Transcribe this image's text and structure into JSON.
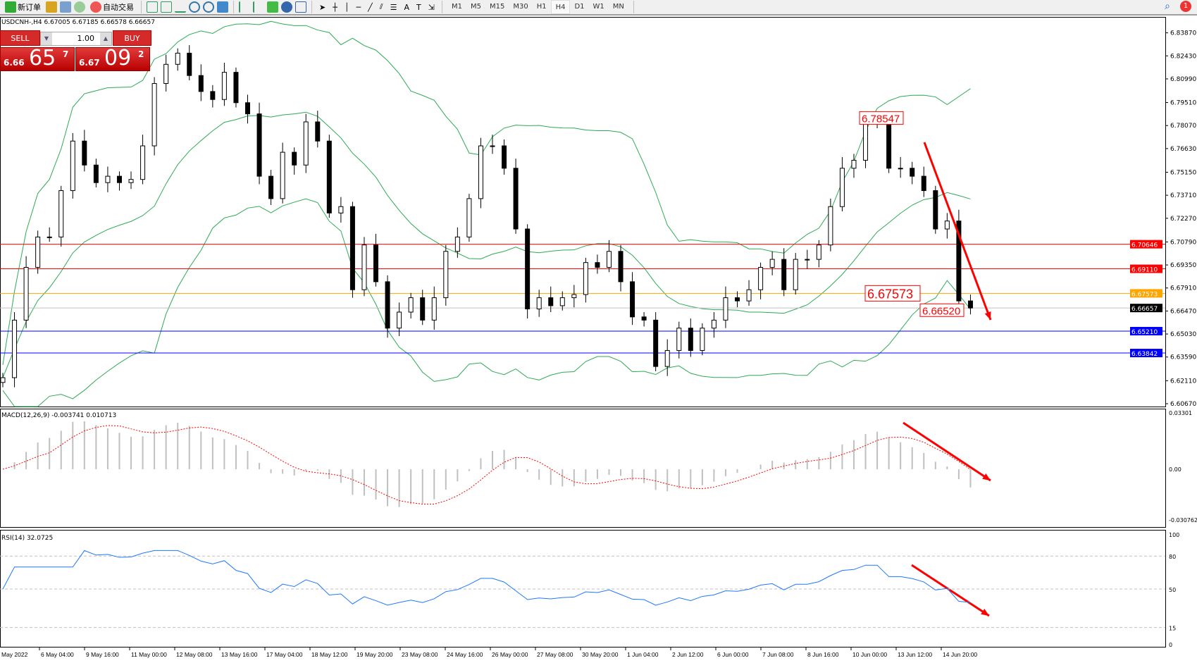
{
  "toolbar": {
    "new_order": "新订单",
    "auto_trading": "自动交易",
    "timeframes": [
      "M1",
      "M5",
      "M15",
      "M30",
      "H1",
      "H4",
      "D1",
      "W1",
      "MN"
    ],
    "active_timeframe": "H4",
    "notification_count": "1"
  },
  "symbol_info": "USDCNH-,H4  6.67005 6.67185 6.66578 6.66657",
  "trade_panel": {
    "sell_label": "SELL",
    "buy_label": "BUY",
    "lot": "1.00",
    "sell": {
      "prefix": "6.66",
      "large": "65",
      "sup": "7"
    },
    "buy": {
      "prefix": "6.67",
      "large": "09",
      "sup": "2"
    }
  },
  "price_axis": {
    "ticks": [
      "6.83870",
      "6.82430",
      "6.80990",
      "6.79510",
      "6.78070",
      "6.76630",
      "6.75150",
      "6.73710",
      "6.72270",
      "6.70790",
      "6.69350",
      "6.67910",
      "6.66470",
      "6.65030",
      "6.63590",
      "6.62110",
      "6.60670"
    ],
    "range": [
      6.6067,
      6.8387
    ]
  },
  "levels": [
    {
      "price": "6.70646",
      "color": "#ff0000"
    },
    {
      "price": "6.69110",
      "color": "#ff0000"
    },
    {
      "price": "6.67573",
      "color": "#ffa500"
    },
    {
      "price": "6.66657",
      "color": "#000000",
      "line": "#c0c0c0"
    },
    {
      "price": "6.65210",
      "color": "#0000ff"
    },
    {
      "price": "6.63842",
      "color": "#0000ff"
    }
  ],
  "annotations": [
    {
      "text": "6.78547",
      "price": 6.78547
    },
    {
      "text": "6.67573",
      "price": 6.67573
    },
    {
      "text": "6.66520",
      "price": 6.6652
    }
  ],
  "macd": {
    "label": "MACD(12,26,9) -0.003741 0.010713",
    "ticks": [
      "0.03301",
      "0.00",
      "-0.030762"
    ]
  },
  "rsi": {
    "label": "RSI(14) 32.0725",
    "ticks": [
      "100",
      "80",
      "50",
      "15",
      "0"
    ]
  },
  "time_axis": [
    "May 2022",
    "6 May 04:00",
    "9 May 16:00",
    "11 May 00:00",
    "12 May 08:00",
    "13 May 16:00",
    "17 May 04:00",
    "18 May 12:00",
    "19 May 20:00",
    "23 May 08:00",
    "24 May 16:00",
    "26 May 00:00",
    "27 May 08:00",
    "30 May 20:00",
    "1 Jun 04:00",
    "2 Jun 12:00",
    "6 Jun 00:00",
    "7 Jun 08:00",
    "8 Jun 16:00",
    "10 Jun 00:00",
    "13 Jun 12:00",
    "14 Jun 20:00"
  ],
  "colors": {
    "bands": "#2eaa55",
    "arrow": "#ff0000",
    "signal": "#ff0000",
    "histogram": "#c0c0c0",
    "rsi": "#1e78ff"
  },
  "chart_data": {
    "type": "candlestick",
    "symbol": "USDCNH-",
    "timeframe": "H4",
    "closes": [
      6.623,
      6.659,
      6.692,
      6.711,
      6.711,
      6.74,
      6.771,
      6.756,
      6.745,
      6.749,
      6.745,
      6.747,
      6.768,
      6.807,
      6.819,
      6.826,
      6.812,
      6.802,
      6.797,
      6.814,
      6.795,
      6.788,
      6.749,
      6.735,
      6.764,
      6.756,
      6.783,
      6.771,
      6.726,
      6.73,
      6.678,
      6.706,
      6.683,
      6.654,
      6.664,
      6.673,
      6.659,
      6.673,
      6.702,
      6.711,
      6.735,
      6.768,
      6.768,
      6.754,
      6.716,
      6.666,
      6.673,
      6.668,
      6.673,
      6.675,
      6.695,
      6.692,
      6.702,
      6.683,
      6.661,
      6.659,
      6.63,
      6.64,
      6.654,
      6.64,
      6.654,
      6.659,
      6.673,
      6.671,
      6.678,
      6.692,
      6.697,
      6.678,
      6.697,
      6.697,
      6.706,
      6.73,
      6.754,
      6.759,
      6.783,
      6.783,
      6.754,
      6.754,
      6.749,
      6.74,
      6.716,
      6.721,
      6.671,
      6.6666
    ]
  }
}
